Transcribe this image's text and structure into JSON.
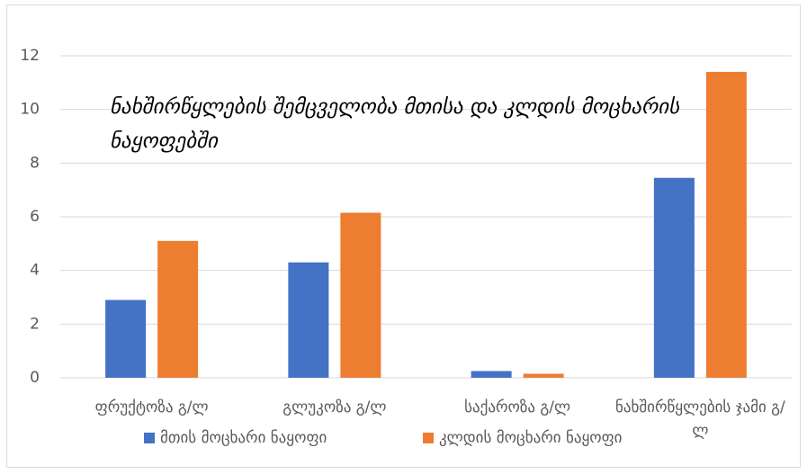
{
  "chart_data": {
    "type": "bar",
    "title": "ნახშირწყლების შემცველობა მთისა და კლდის მოცხარის ნაყოფებში",
    "categories": [
      "ფრუქტოზა  გ/ლ",
      "გლუკოზა გ/ლ",
      "საქაროზა გ/ლ",
      "ნახშირწყლების ჯამი გ/ლ"
    ],
    "series": [
      {
        "name": "მთის მოცხარი ნაყოფი",
        "color": "#4472c4",
        "values": [
          2.9,
          4.3,
          0.25,
          7.45
        ]
      },
      {
        "name": "კლდის მოცხარი ნაყოფი",
        "color": "#ed7d31",
        "values": [
          5.1,
          6.15,
          0.15,
          11.4
        ]
      }
    ],
    "ylim": [
      0,
      12
    ],
    "yticks": [
      0,
      2,
      4,
      6,
      8,
      10,
      12
    ],
    "grid": true,
    "legend": "bottom"
  }
}
